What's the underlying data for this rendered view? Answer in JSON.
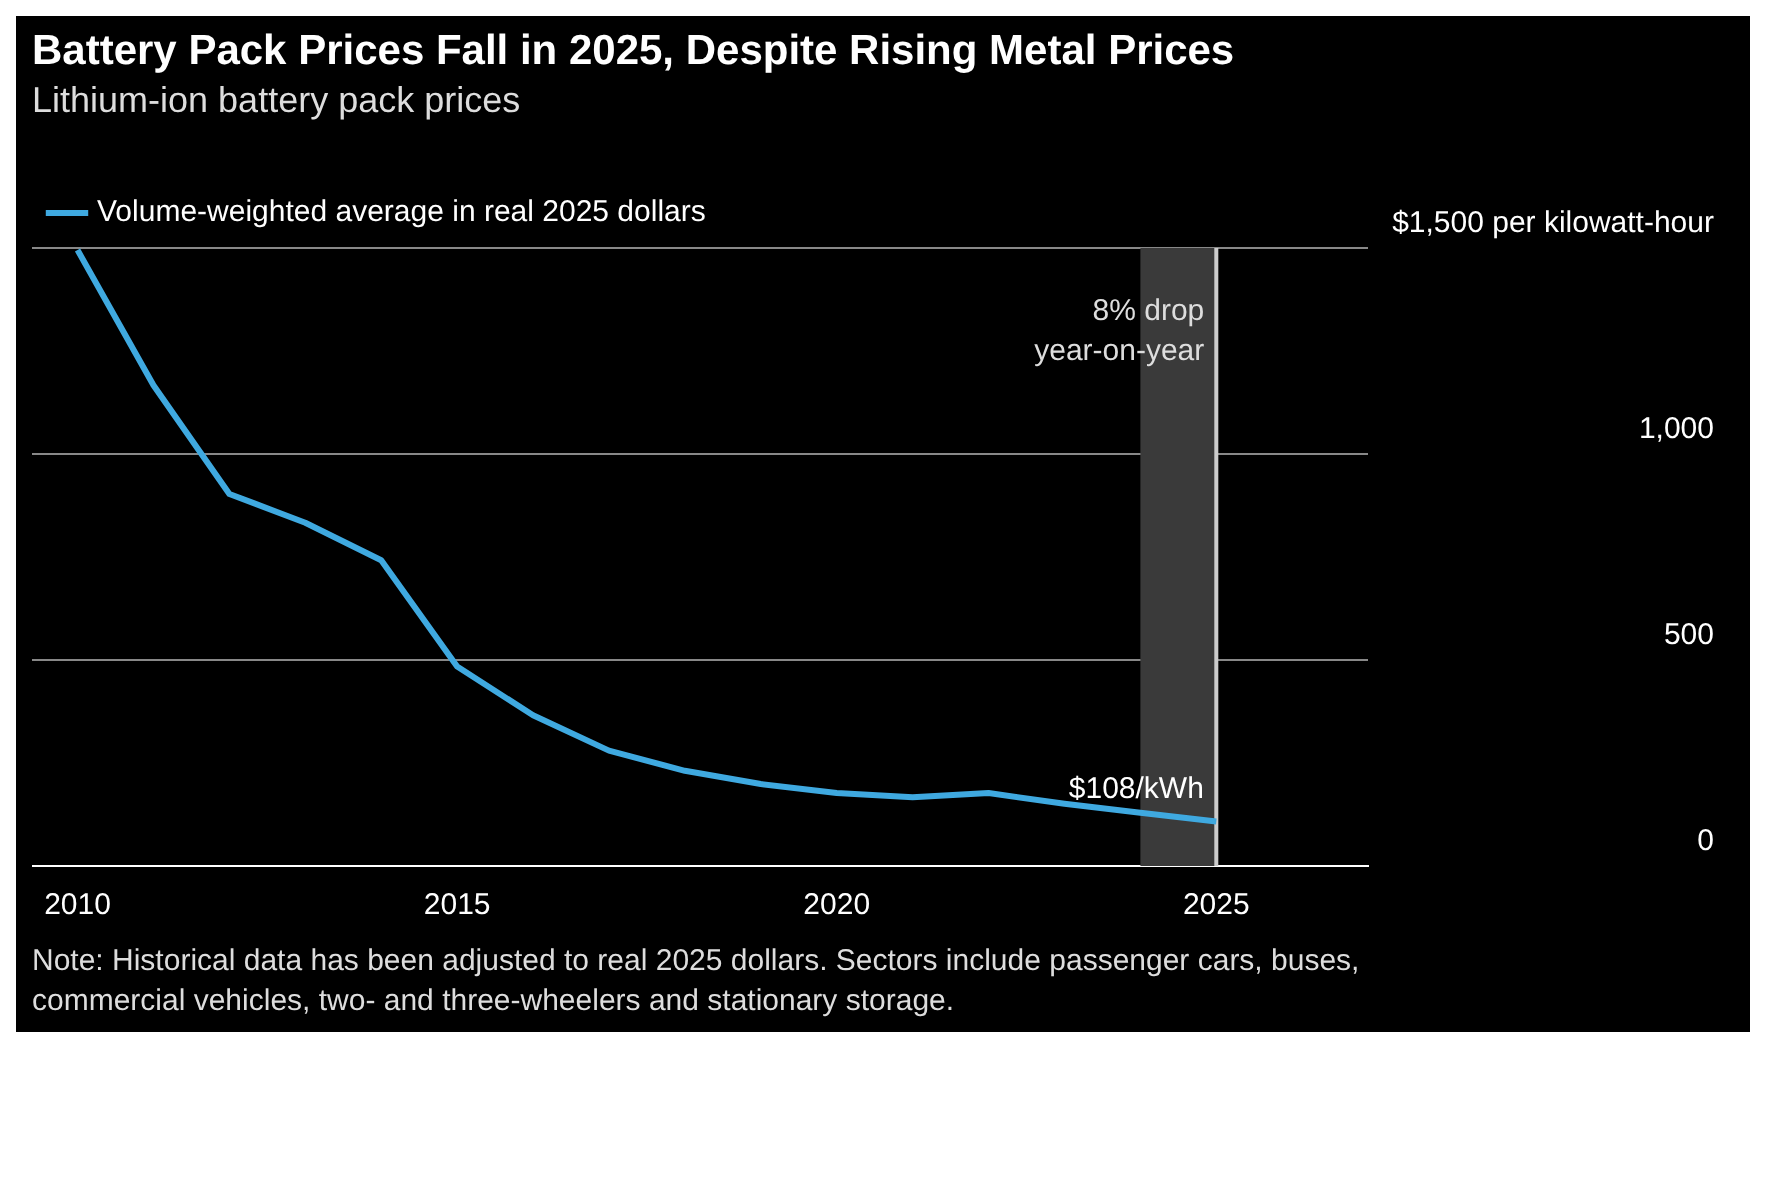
{
  "chart_data": {
    "type": "line",
    "title": "Battery Pack Prices Fall in 2025, Despite Rising Metal Prices",
    "subtitle": "Lithium-ion battery pack prices",
    "x": [
      2010,
      2011,
      2012,
      2013,
      2014,
      2015,
      2016,
      2017,
      2018,
      2019,
      2020,
      2021,
      2022,
      2023,
      2024,
      2025
    ],
    "series": [
      {
        "name": "Volume-weighted average in real 2025 dollars",
        "color": "#3fa9e0",
        "values": [
          1495,
          1167,
          903,
          833,
          742,
          484,
          366,
          280,
          231,
          199,
          177,
          167,
          177,
          151,
          129,
          108
        ]
      }
    ],
    "xlim": [
      2009.4,
      2027
    ],
    "xticks": [
      2010,
      2015,
      2020,
      2025
    ],
    "ylim": [
      0,
      1500
    ],
    "yticks": [
      0,
      500,
      {
        "value": 1000,
        "label": "1,000"
      },
      {
        "value": 1500,
        "label": "$1,500 per kilowatt-hour"
      }
    ],
    "grid": "y",
    "legend": "top left",
    "marker": "none",
    "line_style": "solid",
    "ref_lines": [
      {
        "axis": "x",
        "value": 2025,
        "color": "#cccccc"
      }
    ],
    "bands": [
      {
        "axis": "x",
        "from": 2024,
        "to": 2025,
        "label": "8% drop year-on-year",
        "color": "#3a3a3a"
      }
    ],
    "annotations": [
      {
        "text": "$108/kWh",
        "x": 2025,
        "y": 108
      },
      "Note: Historical data has been adjusted to real 2025 dollars. Sectors include passenger cars, buses, commercial vehicles, two- and three-wheelers and stationary storage."
    ]
  }
}
